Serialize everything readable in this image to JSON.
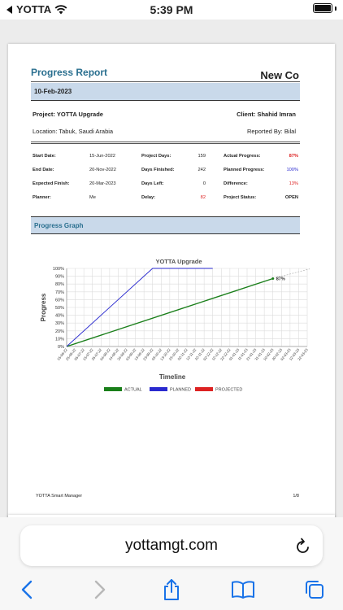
{
  "status_bar": {
    "carrier": "YOTTA",
    "time": "5:39 PM"
  },
  "report": {
    "title": "Progress Report",
    "company": "New Co",
    "date": "10-Feb-2023",
    "project": "Project: YOTTA Upgrade",
    "client": "Client: Shahid Imran",
    "location": "Location: Tabuk, Saudi Arabia",
    "reported_by": "Reported By: Bilal",
    "rows": [
      {
        "l1": "Start Date:",
        "v1": "15-Jun-2022",
        "l2": "Project Days:",
        "v2": "159",
        "l3": "Actual Progress:",
        "v3": "87%"
      },
      {
        "l1": "End Date:",
        "v1": "20-Nov-2022",
        "l2": "Days Finished:",
        "v2": "242",
        "l3": "Planned Progress:",
        "v3": "100%"
      },
      {
        "l1": "Expected Finish:",
        "v1": "20-Mar-2023",
        "l2": "Days Left:",
        "v2": "0",
        "l3": "Difference:",
        "v3": "13%"
      },
      {
        "l1": "Planner:",
        "v1": "Me",
        "l2": "Delay:",
        "v2": "82",
        "l3": "Project Status:",
        "v3": "OPEN"
      }
    ],
    "graph_section": "Progress Graph",
    "footer_left": "YOTTA Smart Manager",
    "footer_right": "1/8"
  },
  "chart_data": {
    "type": "line",
    "title": "YOTTA Upgrade",
    "xlabel": "Timeline",
    "ylabel": "Progress",
    "ylim": [
      0,
      100
    ],
    "yticks": [
      "0%",
      "10%",
      "20%",
      "30%",
      "40%",
      "50%",
      "60%",
      "70%",
      "80%",
      "90%",
      "100%"
    ],
    "categories": [
      "15-06-22",
      "25-06-22",
      "05-07-22",
      "15-07-22",
      "25-07-22",
      "04-08-22",
      "14-08-22",
      "24-08-22",
      "03-09-22",
      "13-09-22",
      "23-09-22",
      "03-10-22",
      "13-10-22",
      "23-10-22",
      "02-11-22",
      "12-11-22",
      "22-11-22",
      "02-12-22",
      "12-12-22",
      "22-12-22",
      "01-01-23",
      "11-01-23",
      "21-01-23",
      "31-01-23",
      "10-02-23",
      "20-02-23",
      "02-03-23",
      "12-03-23",
      "22-03-23"
    ],
    "series": [
      {
        "name": "ACTUAL",
        "color": "#1a7f1a",
        "points": [
          [
            0,
            0
          ],
          [
            24,
            87
          ]
        ]
      },
      {
        "name": "PLANNED",
        "color": "#2a2acf",
        "points": [
          [
            0,
            0
          ],
          [
            10,
            100
          ],
          [
            17,
            100
          ]
        ]
      },
      {
        "name": "PROJECTED",
        "color": "#dd2222",
        "points": []
      }
    ],
    "projection_line": {
      "color": "#bbbbbb",
      "points": [
        [
          24,
          87
        ],
        [
          28.5,
          100
        ]
      ]
    },
    "annotation": "87%",
    "grid": true,
    "legend_placement": "bottom"
  },
  "browser": {
    "url": "yottamgt.com"
  }
}
